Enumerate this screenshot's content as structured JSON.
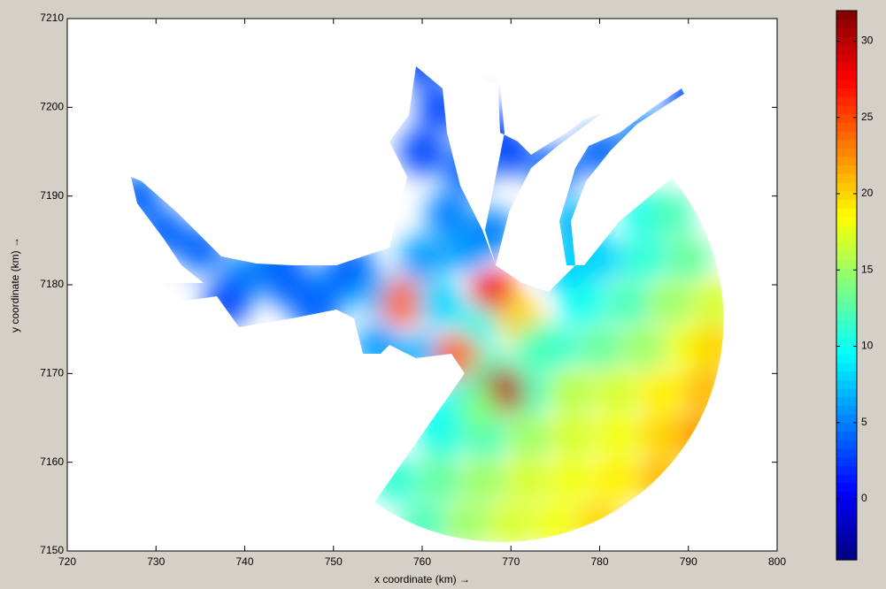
{
  "chart_data": {
    "type": "field",
    "xlabel": "x coordinate (km) →",
    "ylabel": "y coordinate (km) →",
    "xlim": [
      720,
      800
    ],
    "xticks": [
      720,
      730,
      740,
      750,
      760,
      770,
      780,
      790,
      800
    ],
    "ylim": [
      7150,
      7210
    ],
    "yticks": [
      7150,
      7160,
      7170,
      7180,
      7190,
      7200,
      7210
    ],
    "clim": [
      -4,
      32
    ],
    "colorbar_ticks": [
      0,
      5,
      10,
      15,
      20,
      25,
      30
    ],
    "colormap": "jet",
    "x": [
      760,
      765,
      770,
      775,
      780,
      757,
      762,
      767,
      772,
      777,
      782,
      787,
      762,
      767,
      772,
      777,
      782,
      787,
      791,
      765,
      772,
      777,
      782,
      787,
      792,
      775,
      780,
      785,
      790,
      793,
      778,
      783,
      788,
      793,
      780,
      785,
      790,
      785,
      788,
      728,
      731,
      735,
      740,
      745,
      750,
      755,
      758,
      762,
      738,
      748,
      744,
      752,
      760,
      762,
      767,
      765,
      760,
      763,
      760,
      765,
      768,
      770,
      775,
      780,
      785,
      790,
      777,
      776,
      768,
      771,
      766,
      773,
      755,
      760,
      764,
      768,
      769,
      766,
      762
    ],
    "y": [
      7153,
      7153,
      7153,
      7153,
      7153,
      7158,
      7158,
      7158,
      7158,
      7158,
      7158,
      7158,
      7163,
      7163,
      7163,
      7163,
      7163,
      7163,
      7163,
      7168,
      7168,
      7168,
      7168,
      7168,
      7168,
      7173,
      7173,
      7173,
      7173,
      7173,
      7178,
      7178,
      7178,
      7178,
      7183,
      7183,
      7183,
      7188,
      7188,
      7190,
      7186,
      7184,
      7181,
      7180,
      7180,
      7179,
      7178,
      7178,
      7178,
      7177,
      7183,
      7182,
      7205,
      7200,
      7198,
      7193,
      7195,
      7188,
      7183,
      7184,
      7186,
      7195,
      7193,
      7195,
      7197,
      7201,
      7187,
      7182,
      7179,
      7176,
      7175,
      7173,
      7173,
      7172,
      7172,
      7170,
      7168,
      7166,
      7165
    ],
    "values": [
      12,
      15,
      17,
      18,
      20,
      11,
      13,
      15,
      17,
      18,
      19,
      21,
      11,
      12,
      15,
      17,
      18,
      20,
      22,
      9,
      12,
      16,
      17,
      19,
      21,
      11,
      13,
      15,
      18,
      20,
      10,
      12,
      15,
      17,
      8,
      11,
      13,
      10,
      12,
      4,
      4,
      4,
      5,
      4,
      5,
      7,
      24,
      8,
      3,
      4,
      4,
      4,
      3,
      3,
      3,
      4,
      3,
      5,
      6,
      6,
      5,
      3,
      4,
      4,
      5,
      3,
      7,
      8,
      28,
      20,
      10,
      12,
      6,
      7,
      24,
      12,
      30,
      14,
      10
    ]
  }
}
